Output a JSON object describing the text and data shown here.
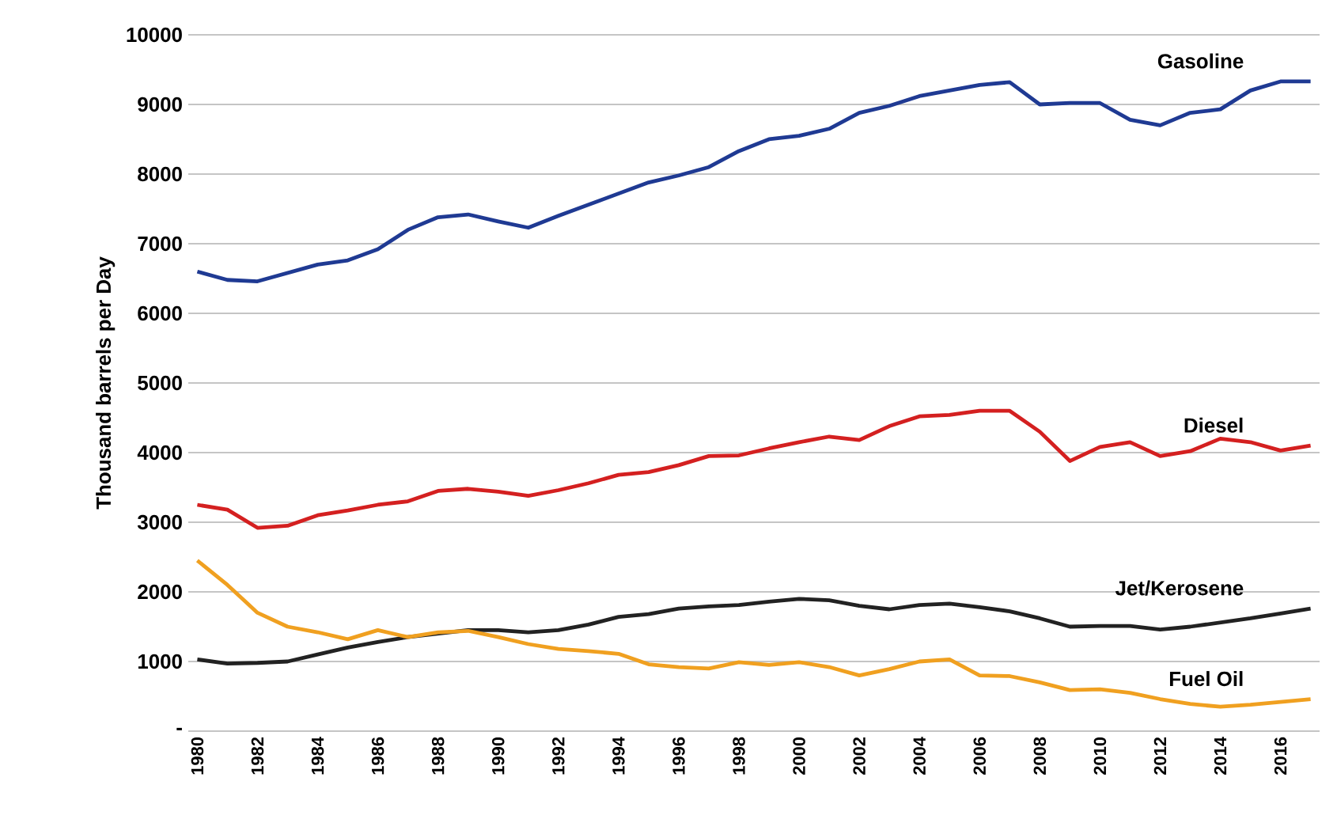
{
  "chart_data": {
    "type": "line",
    "ylabel": "Thousand barrels per Day",
    "x": [
      1980,
      1981,
      1982,
      1983,
      1984,
      1985,
      1986,
      1987,
      1988,
      1989,
      1990,
      1991,
      1992,
      1993,
      1994,
      1995,
      1996,
      1997,
      1998,
      1999,
      2000,
      2001,
      2002,
      2003,
      2004,
      2005,
      2006,
      2007,
      2008,
      2009,
      2010,
      2011,
      2012,
      2013,
      2014,
      2015,
      2016,
      2017
    ],
    "xlim": [
      1979.7,
      2017.3
    ],
    "xticks": [
      1980,
      1982,
      1984,
      1986,
      1988,
      1990,
      1992,
      1994,
      1996,
      1998,
      2000,
      2002,
      2004,
      2006,
      2008,
      2010,
      2012,
      2014,
      2016
    ],
    "ylim": [
      0,
      10000
    ],
    "yticks": [
      {
        "value": 0,
        "label": "-"
      },
      1000,
      2000,
      3000,
      4000,
      5000,
      6000,
      7000,
      8000,
      9000,
      10000
    ],
    "grid": "y",
    "legend": false,
    "marker": "none",
    "line_style": "solid",
    "series": [
      {
        "name": "Gasoline",
        "color": "#1f3a93",
        "values": [
          6600,
          6480,
          6460,
          6580,
          6700,
          6760,
          6920,
          7200,
          7380,
          7420,
          7320,
          7230,
          7400,
          7560,
          7720,
          7880,
          7980,
          8100,
          8330,
          8500,
          8550,
          8650,
          8880,
          8980,
          9120,
          9200,
          9280,
          9320,
          9000,
          9020,
          9020,
          8780,
          8700,
          8880,
          8930,
          9200,
          9330,
          9330
        ]
      },
      {
        "name": "Diesel",
        "color": "#d42020",
        "values": [
          3250,
          3180,
          2920,
          2950,
          3100,
          3170,
          3250,
          3300,
          3450,
          3480,
          3440,
          3380,
          3460,
          3560,
          3680,
          3720,
          3820,
          3950,
          3960,
          4060,
          4150,
          4230,
          4180,
          4380,
          4520,
          4540,
          4600,
          4600,
          4300,
          3880,
          4080,
          4150,
          3950,
          4020,
          4200,
          4150,
          4030,
          4100
        ]
      },
      {
        "name": "Jet/Kerosene",
        "color": "#222222",
        "values": [
          1030,
          970,
          980,
          1000,
          1100,
          1200,
          1280,
          1350,
          1400,
          1450,
          1450,
          1420,
          1450,
          1530,
          1640,
          1680,
          1760,
          1790,
          1810,
          1860,
          1900,
          1880,
          1800,
          1750,
          1810,
          1830,
          1780,
          1720,
          1620,
          1500,
          1510,
          1510,
          1460,
          1500,
          1560,
          1620,
          1690,
          1760
        ]
      },
      {
        "name": "Fuel Oil",
        "color": "#f0a020",
        "values": [
          2450,
          2100,
          1700,
          1500,
          1420,
          1320,
          1450,
          1350,
          1420,
          1440,
          1350,
          1250,
          1180,
          1150,
          1110,
          960,
          920,
          900,
          990,
          950,
          990,
          920,
          800,
          890,
          1000,
          1030,
          800,
          790,
          700,
          590,
          600,
          550,
          460,
          390,
          350,
          380,
          420,
          460
        ]
      }
    ]
  }
}
